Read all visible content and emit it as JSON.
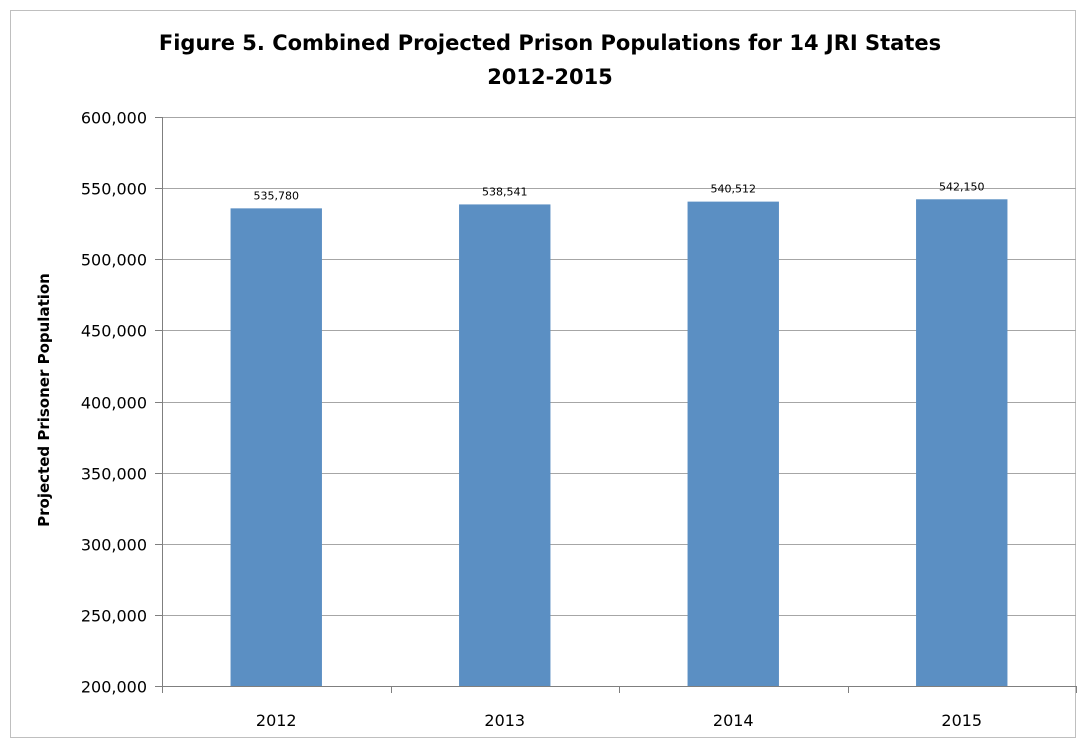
{
  "chart_data": {
    "type": "bar",
    "title": "Figure 5. Combined Projected Prison Populations for 14  JRI States",
    "subtitle": "2012-2015",
    "xlabel": "",
    "ylabel": "Projected Prisoner Population",
    "categories": [
      "2012",
      "2013",
      "2014",
      "2015"
    ],
    "values": [
      535780,
      538541,
      540512,
      542150
    ],
    "value_labels": [
      "535,780",
      "538,541",
      "540,512",
      "542,150"
    ],
    "ylim": [
      200000,
      600000
    ],
    "yticks": [
      200000,
      250000,
      300000,
      350000,
      400000,
      450000,
      500000,
      550000,
      600000
    ],
    "ytick_labels": [
      "200,000",
      "250,000",
      "300,000",
      "350,000",
      "400,000",
      "450,000",
      "500,000",
      "550,000",
      "600,000"
    ],
    "grid": true,
    "legend": "none",
    "bar_color": "#5b8fc3"
  }
}
